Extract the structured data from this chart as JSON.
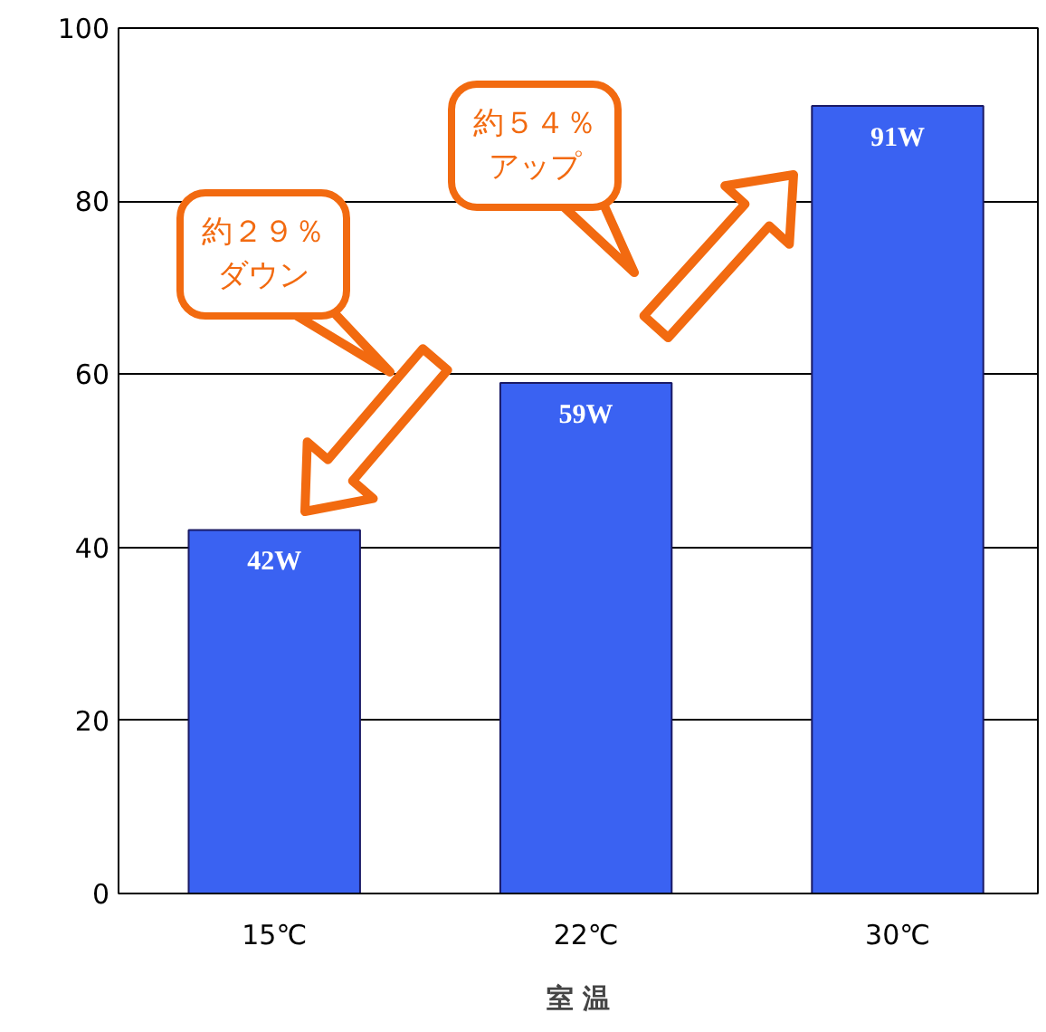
{
  "chart_data": {
    "type": "bar",
    "categories": [
      "15℃",
      "22℃",
      "30℃"
    ],
    "values": [
      42,
      59,
      91
    ],
    "value_labels": [
      "42W",
      "59W",
      "91W"
    ],
    "color": "#3a62f2",
    "xlabel": "室 温",
    "ylim": [
      0,
      100
    ],
    "yticks": [
      0,
      20,
      40,
      60,
      80,
      100
    ],
    "grid": "y",
    "annotations": [
      "約２９％ダウン",
      "約５４％アップ"
    ]
  }
}
